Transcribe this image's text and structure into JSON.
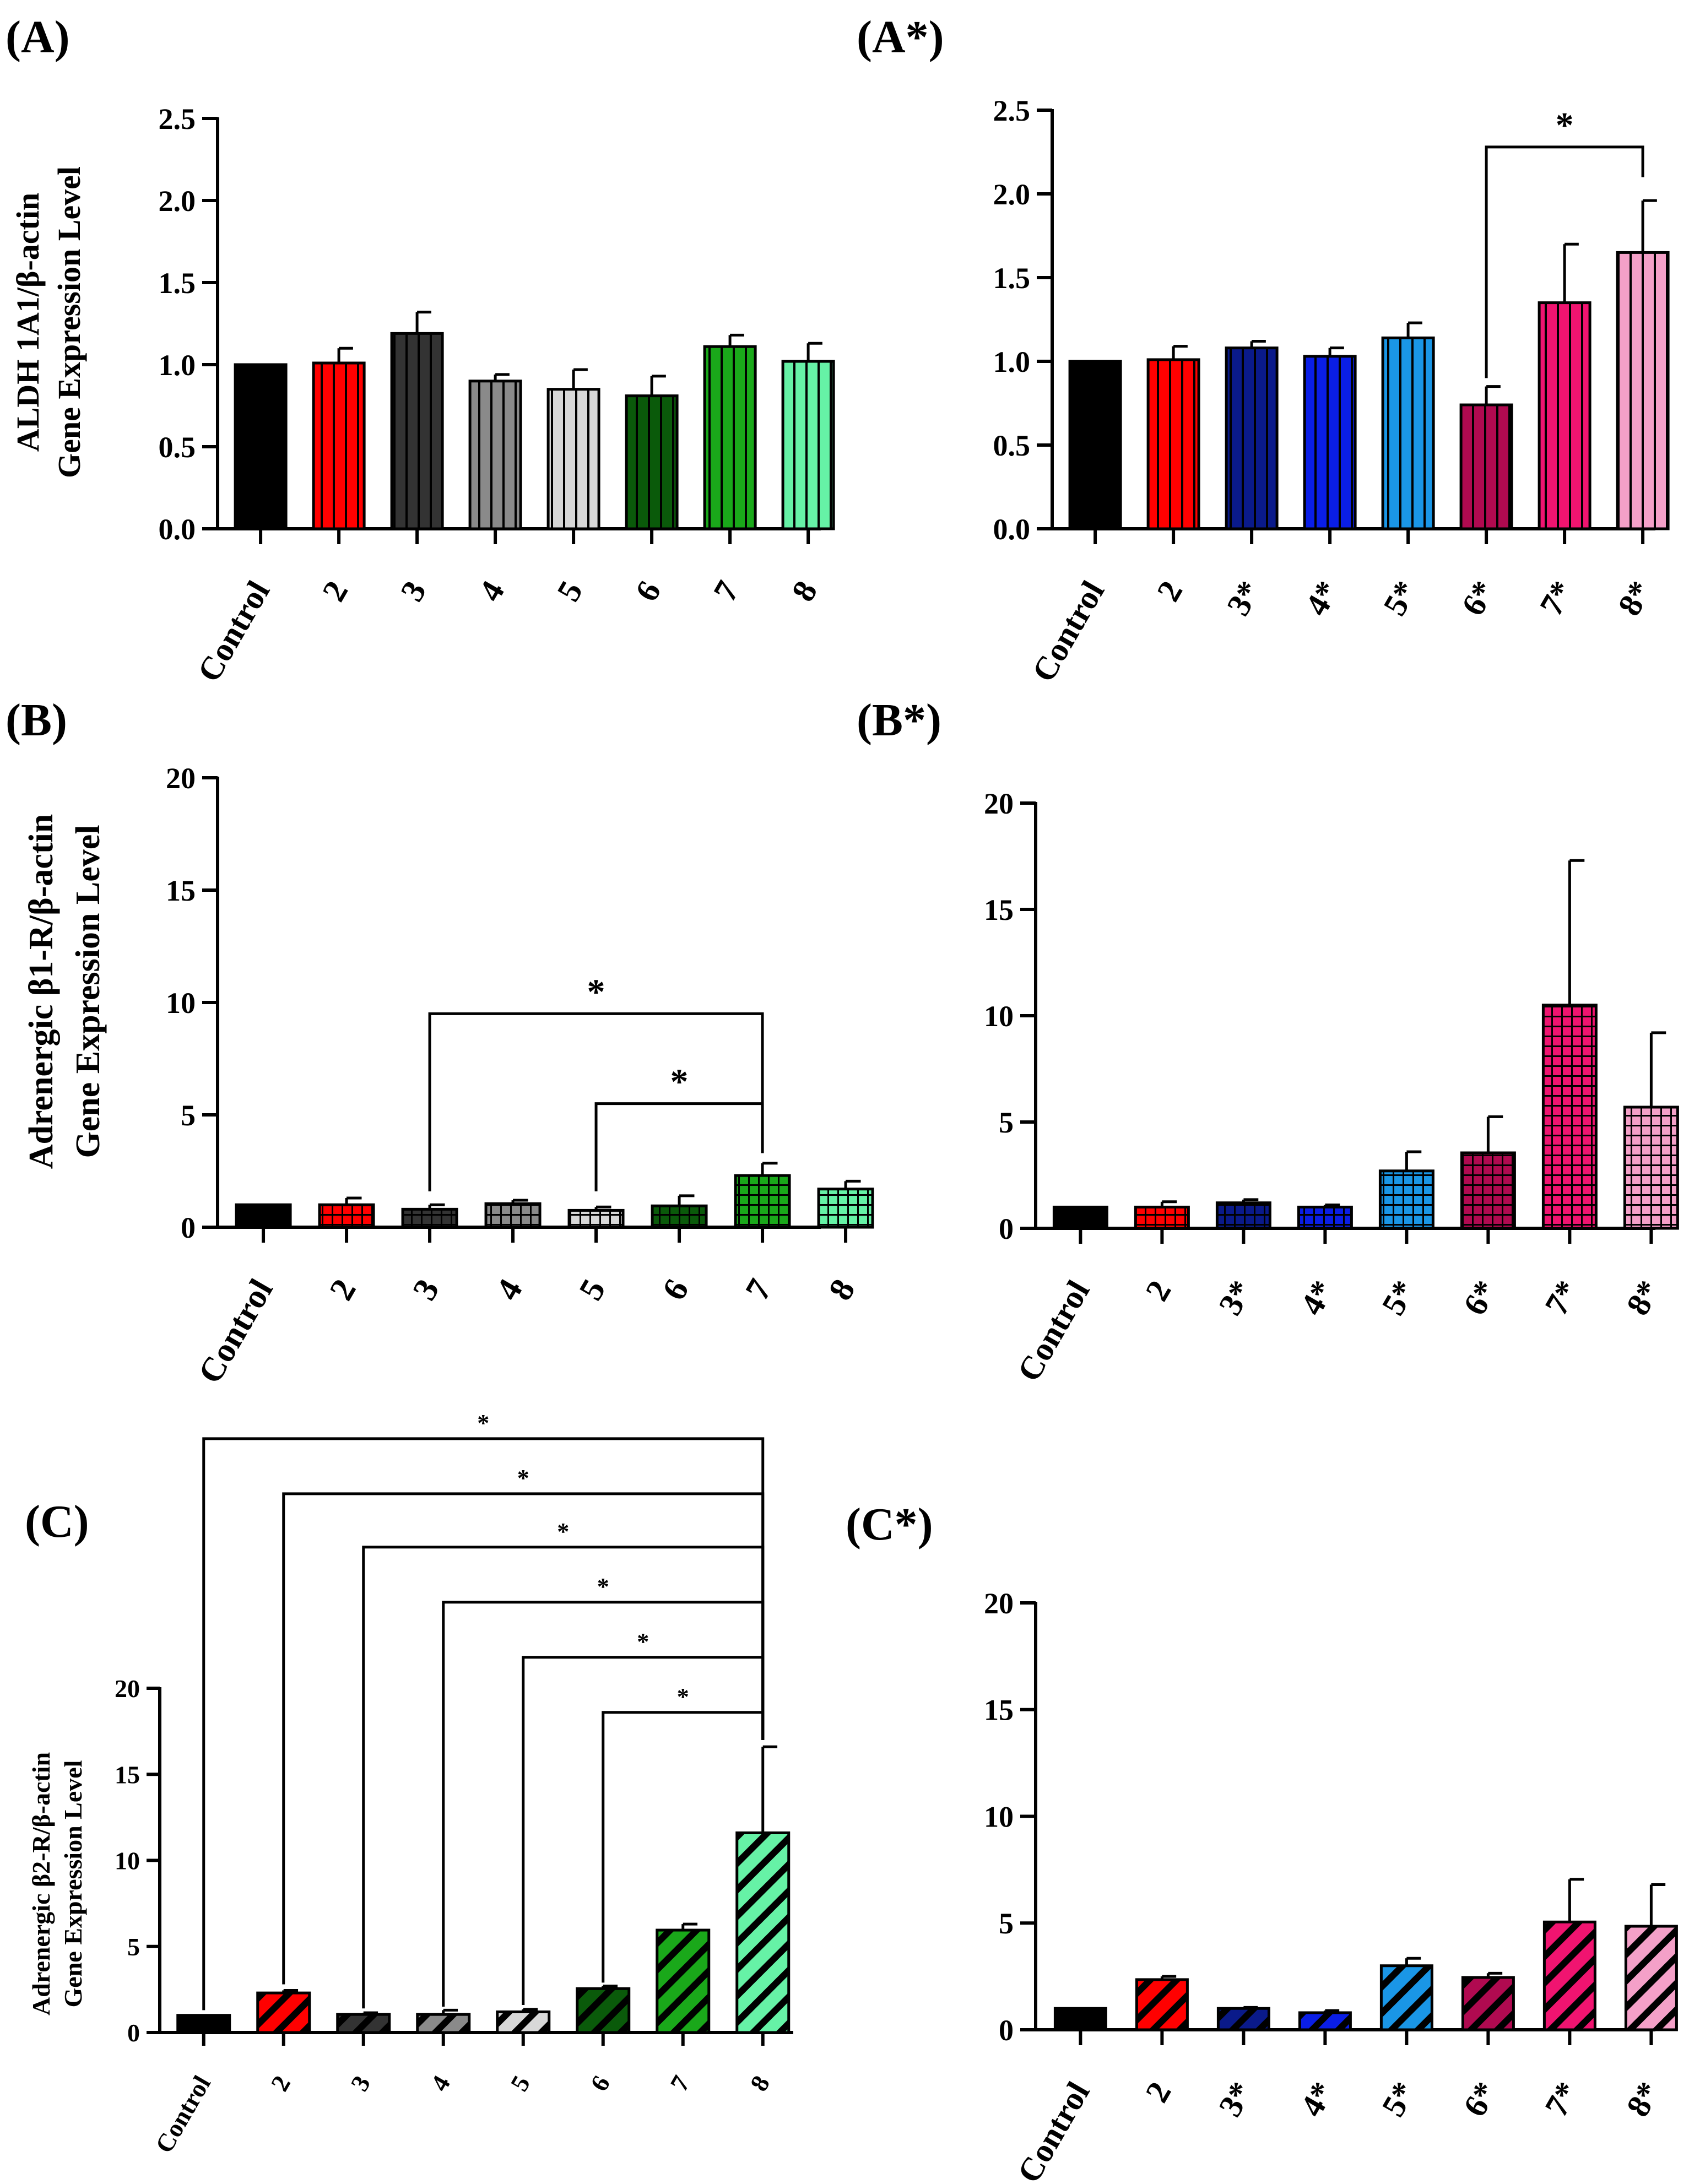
{
  "figure": {
    "patterns": {
      "vstripe": "vertical stripes",
      "grid": "grid",
      "diag": "diagonal stripes"
    }
  },
  "chart_data": [
    {
      "type": "bar",
      "panel_label": "(A)",
      "ylabel_lines": [
        "ALDH 1A1/β-actin",
        "Gene Expression Level"
      ],
      "categories": [
        "Control",
        "2",
        "3",
        "4",
        "5",
        "6",
        "7",
        "8"
      ],
      "values": [
        1.0,
        1.01,
        1.19,
        0.9,
        0.85,
        0.81,
        1.11,
        1.02
      ],
      "errors": [
        0.0,
        0.09,
        0.13,
        0.04,
        0.12,
        0.12,
        0.07,
        0.11
      ],
      "colors": [
        "#000000",
        "#ff0000",
        "#333333",
        "#8a8a8a",
        "#d8d8d8",
        "#0a5a0a",
        "#1aa81a",
        "#66f2a6"
      ],
      "pattern": "vstripe",
      "ylim": [
        0,
        2.5
      ],
      "yticks": [
        "0.0",
        "0.5",
        "1.0",
        "1.5",
        "2.0",
        "2.5"
      ],
      "significance": []
    },
    {
      "type": "bar",
      "panel_label": "(A*)",
      "ylabel_lines": [],
      "categories": [
        "Control",
        "2",
        "3*",
        "4*",
        "5*",
        "6*",
        "7*",
        "8*"
      ],
      "values": [
        1.0,
        1.01,
        1.08,
        1.03,
        1.14,
        0.74,
        1.35,
        1.65
      ],
      "errors": [
        0.0,
        0.08,
        0.04,
        0.05,
        0.09,
        0.11,
        0.35,
        0.31
      ],
      "colors": [
        "#000000",
        "#ff0000",
        "#0a1a8a",
        "#0a1ee6",
        "#1a96e6",
        "#b00a50",
        "#f01470",
        "#f4a0c8"
      ],
      "pattern": "vstripe",
      "ylim": [
        0,
        2.5
      ],
      "yticks": [
        "0.0",
        "0.5",
        "1.0",
        "1.5",
        "2.0",
        "2.5"
      ],
      "significance": [
        {
          "from": 5,
          "to": 7,
          "level": 2.28,
          "drop_from": 0.9,
          "drop_to": 2.1,
          "label": "*"
        }
      ]
    },
    {
      "type": "bar",
      "panel_label": "(B)",
      "ylabel_lines": [
        "Adrenergic β1-R/β-actin",
        "Gene Expression Level"
      ],
      "categories": [
        "Control",
        "2",
        "3",
        "4",
        "5",
        "6",
        "7",
        "8"
      ],
      "values": [
        1.0,
        1.0,
        0.8,
        1.05,
        0.75,
        0.95,
        2.3,
        1.7
      ],
      "errors": [
        0.0,
        0.3,
        0.2,
        0.15,
        0.15,
        0.45,
        0.55,
        0.35
      ],
      "colors": [
        "#000000",
        "#ff0000",
        "#333333",
        "#8a8a8a",
        "#d8d8d8",
        "#0a5a0a",
        "#1aa81a",
        "#66f2a6"
      ],
      "pattern": "grid",
      "ylim": [
        0,
        20
      ],
      "yticks": [
        "0",
        "5",
        "10",
        "15",
        "20"
      ],
      "significance": [
        {
          "from": 2,
          "to": 6,
          "level": 9.5,
          "drop_from": 1.6,
          "drop_to": 3.3,
          "label": "*"
        },
        {
          "from": 4,
          "to": 6,
          "level": 5.5,
          "drop_from": 1.6,
          "drop_to": 3.3,
          "label": "*"
        }
      ]
    },
    {
      "type": "bar",
      "panel_label": "(B*)",
      "ylabel_lines": [],
      "categories": [
        "Control",
        "2",
        "3*",
        "4*",
        "5*",
        "6*",
        "7*",
        "8*"
      ],
      "values": [
        1.0,
        1.0,
        1.2,
        1.0,
        2.7,
        3.55,
        10.5,
        5.7
      ],
      "errors": [
        0.0,
        0.25,
        0.15,
        0.1,
        0.9,
        1.7,
        6.8,
        3.5
      ],
      "colors": [
        "#000000",
        "#ff0000",
        "#0a1a8a",
        "#0a1ee6",
        "#1a96e6",
        "#b00a50",
        "#f01470",
        "#f4a0c8"
      ],
      "pattern": "grid",
      "ylim": [
        0,
        20
      ],
      "yticks": [
        "0",
        "5",
        "10",
        "15",
        "20"
      ],
      "significance": []
    },
    {
      "type": "bar",
      "panel_label": "(C)",
      "ylabel_lines": [
        "Adrenergic β2-R/β-actin",
        "Gene Expression Level"
      ],
      "categories": [
        "Control",
        "2",
        "3",
        "4",
        "5",
        "6",
        "7",
        "8"
      ],
      "values": [
        1.0,
        2.3,
        1.05,
        1.05,
        1.2,
        2.55,
        5.95,
        11.6
      ],
      "errors": [
        0.0,
        0.15,
        0.1,
        0.25,
        0.15,
        0.15,
        0.35,
        5.0
      ],
      "colors": [
        "#000000",
        "#ff0000",
        "#333333",
        "#8a8a8a",
        "#d8d8d8",
        "#0a5a0a",
        "#1aa81a",
        "#66f2a6"
      ],
      "pattern": "diag",
      "ylim": [
        0,
        20
      ],
      "yticks": [
        "0",
        "5",
        "10",
        "15",
        "20"
      ],
      "significance": [
        {
          "from": 0,
          "to": 7,
          "level": 34.5,
          "drop_from": 1.3,
          "drop_to": 17.0,
          "label": "*"
        },
        {
          "from": 1,
          "to": 7,
          "level": 31.3,
          "drop_from": 2.8,
          "drop_to": 17.0,
          "label": "*"
        },
        {
          "from": 2,
          "to": 7,
          "level": 28.2,
          "drop_from": 1.4,
          "drop_to": 17.0,
          "label": "*"
        },
        {
          "from": 3,
          "to": 7,
          "level": 25.0,
          "drop_from": 1.5,
          "drop_to": 17.0,
          "label": "*"
        },
        {
          "from": 4,
          "to": 7,
          "level": 21.8,
          "drop_from": 1.6,
          "drop_to": 17.0,
          "label": "*"
        },
        {
          "from": 5,
          "to": 7,
          "level": 18.6,
          "drop_from": 2.9,
          "drop_to": 17.0,
          "label": "*"
        }
      ]
    },
    {
      "type": "bar",
      "panel_label": "(C*)",
      "ylabel_lines": [],
      "categories": [
        "Control",
        "2",
        "3*",
        "4*",
        "5*",
        "6*",
        "7*",
        "8*"
      ],
      "values": [
        1.0,
        2.35,
        1.0,
        0.8,
        3.0,
        2.45,
        5.05,
        4.85
      ],
      "errors": [
        0.0,
        0.15,
        0.05,
        0.1,
        0.35,
        0.2,
        2.0,
        1.95
      ],
      "colors": [
        "#000000",
        "#ff0000",
        "#0a1a8a",
        "#0a1ee6",
        "#1a96e6",
        "#b00a50",
        "#f01470",
        "#f4a0c8"
      ],
      "pattern": "diag",
      "ylim": [
        0,
        20
      ],
      "yticks": [
        "0",
        "5",
        "10",
        "15",
        "20"
      ],
      "significance": []
    }
  ]
}
